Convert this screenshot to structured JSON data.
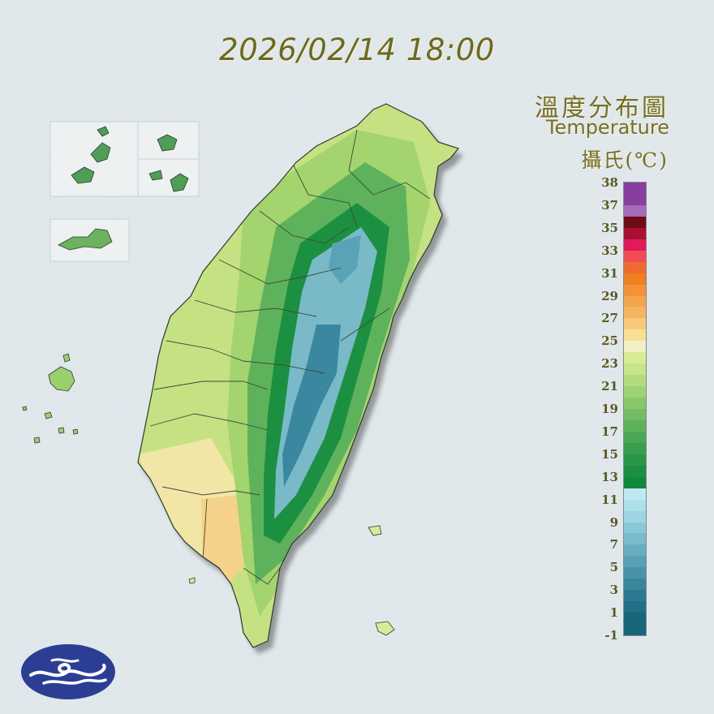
{
  "timestamp": "2026/02/14 18:00",
  "title": {
    "zh": "溫度分布圖",
    "en": "Temperature",
    "unit": "攝氏(℃)"
  },
  "legend": {
    "ticks": [
      "38",
      "37",
      "35",
      "33",
      "31",
      "29",
      "27",
      "25",
      "23",
      "21",
      "19",
      "17",
      "15",
      "13",
      "11",
      "9",
      "7",
      "5",
      "3",
      "1",
      "-1"
    ],
    "bands": [
      {
        "from": 37,
        "to": 38,
        "color": "#8a3da0"
      },
      {
        "from": 36,
        "to": 37,
        "color": "#a66ab8"
      },
      {
        "from": 35,
        "to": 36,
        "color": "#6e0b17"
      },
      {
        "from": 34,
        "to": 35,
        "color": "#a80f33"
      },
      {
        "from": 33,
        "to": 34,
        "color": "#e3195a"
      },
      {
        "from": 32,
        "to": 33,
        "color": "#f14c52"
      },
      {
        "from": 31,
        "to": 32,
        "color": "#ef6a33"
      },
      {
        "from": 30,
        "to": 31,
        "color": "#f07f1f"
      },
      {
        "from": 29,
        "to": 30,
        "color": "#f2933a"
      },
      {
        "from": 28,
        "to": 29,
        "color": "#f4a44a"
      },
      {
        "from": 27,
        "to": 28,
        "color": "#f6b460"
      },
      {
        "from": 26,
        "to": 27,
        "color": "#f8c977"
      },
      {
        "from": 25,
        "to": 26,
        "color": "#f9df93"
      },
      {
        "from": 24,
        "to": 25,
        "color": "#f1f0c6"
      },
      {
        "from": 23,
        "to": 24,
        "color": "#d9ec94"
      },
      {
        "from": 22,
        "to": 23,
        "color": "#c6e585"
      },
      {
        "from": 21,
        "to": 22,
        "color": "#b2dc7c"
      },
      {
        "from": 20,
        "to": 21,
        "color": "#9ed274"
      },
      {
        "from": 19,
        "to": 20,
        "color": "#89c76b"
      },
      {
        "from": 18,
        "to": 19,
        "color": "#73bc64"
      },
      {
        "from": 17,
        "to": 18,
        "color": "#5fb25c"
      },
      {
        "from": 16,
        "to": 17,
        "color": "#4aa855"
      },
      {
        "from": 15,
        "to": 16,
        "color": "#389e4e"
      },
      {
        "from": 14,
        "to": 15,
        "color": "#2a9747"
      },
      {
        "from": 13,
        "to": 14,
        "color": "#1c9041"
      },
      {
        "from": 12,
        "to": 13,
        "color": "#0f8a3c"
      },
      {
        "from": 11,
        "to": 12,
        "color": "#bfe9ee"
      },
      {
        "from": 10,
        "to": 11,
        "color": "#aee0ea"
      },
      {
        "from": 9,
        "to": 10,
        "color": "#9dd6e2"
      },
      {
        "from": 8,
        "to": 9,
        "color": "#8ac9d8"
      },
      {
        "from": 7,
        "to": 8,
        "color": "#78bccd"
      },
      {
        "from": 6,
        "to": 7,
        "color": "#67aec2"
      },
      {
        "from": 5,
        "to": 6,
        "color": "#57a0b5"
      },
      {
        "from": 4,
        "to": 5,
        "color": "#4893a9"
      },
      {
        "from": 3,
        "to": 4,
        "color": "#39869d"
      },
      {
        "from": 2,
        "to": 3,
        "color": "#2c7a91"
      },
      {
        "from": 1,
        "to": 2,
        "color": "#216f86"
      },
      {
        "from": -1,
        "to": 1,
        "color": "#18667c"
      }
    ]
  },
  "colors": {
    "coastal": "#c5e283",
    "southwest_warm": "#f4d28a",
    "lowland": "#a4d46e",
    "foothill": "#5fb25c",
    "mountain": "#1c9041",
    "peak": "#7ab9c8",
    "summit": "#3a87a0",
    "logo": "#2c3e94"
  }
}
